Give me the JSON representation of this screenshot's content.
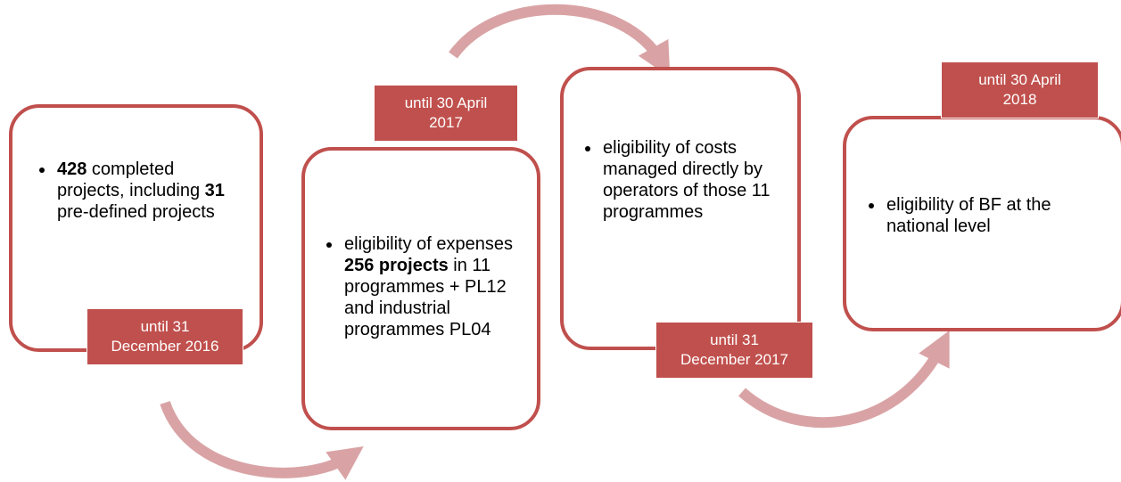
{
  "nodes": [
    {
      "text": [
        {
          "t": "428",
          "bold": true
        },
        {
          "t": " completed projects, including "
        },
        {
          "t": "31",
          "bold": true
        },
        {
          "t": " pre-defined projects"
        }
      ],
      "label": "until 31\nDecember 2016"
    },
    {
      "text": [
        {
          "t": "eligibility of expenses "
        },
        {
          "t": "256 projects",
          "bold": true
        },
        {
          "t": " in 11 programmes + PL12 and industrial programmes PL04"
        }
      ],
      "label": "until 30 April\n2017"
    },
    {
      "text": [
        {
          "t": "eligibility of costs managed directly by operators of those 11 programmes"
        }
      ],
      "label": "until 31\nDecember 2017"
    },
    {
      "text": [
        {
          "t": "eligibility of BF at the national level"
        }
      ],
      "label": "until 30 April\n2018"
    }
  ]
}
